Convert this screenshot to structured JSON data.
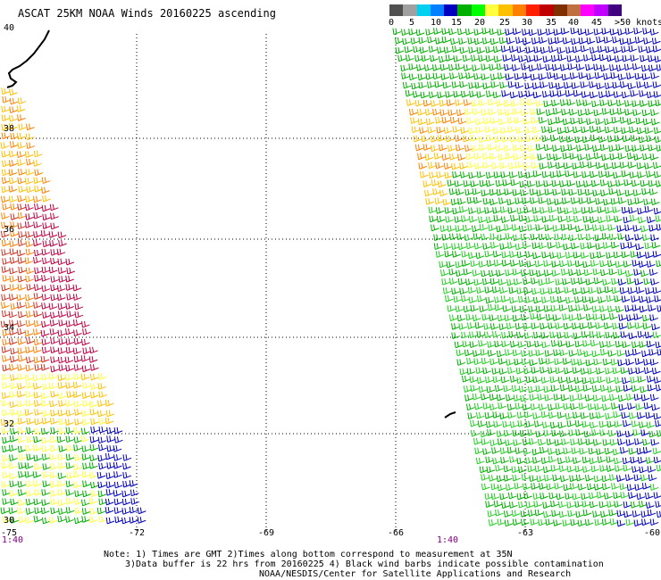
{
  "title": "ASCAT 25KM NOAA Winds 20160225 ascending",
  "colorbar": {
    "colors": [
      "#505050",
      "#a0a0a0",
      "#00d0f0",
      "#0080ff",
      "#0000c0",
      "#00b000",
      "#00ff00",
      "#ffff40",
      "#ffc000",
      "#ff8000",
      "#ff2000",
      "#c00000",
      "#803000",
      "#c07040",
      "#ff00ff",
      "#c000ff",
      "#400080"
    ],
    "labels": [
      "0",
      "5",
      "10",
      "15",
      "20",
      "25",
      "30",
      "35",
      "40",
      "45"
    ],
    "units": ">50 knots"
  },
  "axes": {
    "lat_labels": [
      "40",
      "38",
      "36",
      "34",
      "32",
      "30"
    ],
    "lon_labels": [
      "-75",
      "-72",
      "-69",
      "-66",
      "-63",
      "-60"
    ],
    "time_labels": [
      "1:40",
      "1:40"
    ]
  },
  "notes": [
    "Note: 1) Times are GMT 2)Times along bottom correspond to measurement at 35N",
    "3)Data buffer is 22 hrs from 20160225 4) Black wind barbs indicate possible contamination",
    "NOAA/NESDIS/Center for Satellite Applications and Research"
  ]
}
